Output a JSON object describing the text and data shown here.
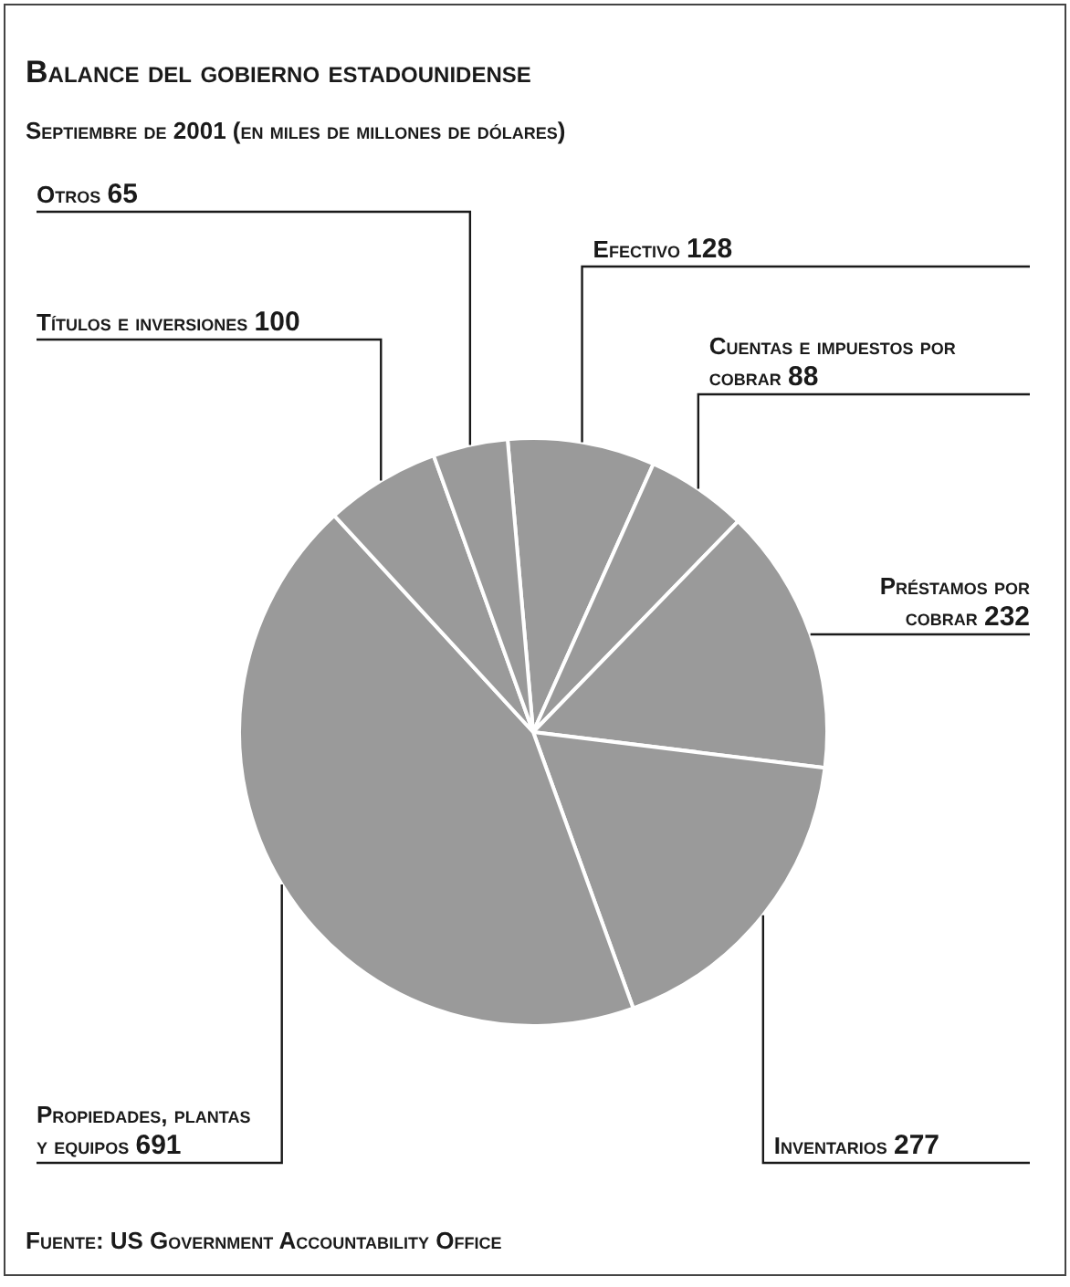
{
  "chart_data": {
    "type": "pie",
    "title": "Balance del gobierno estadounidense",
    "subtitle": "Septiembre de 2001 (en miles de millones de dólares)",
    "categories": [
      "Efectivo",
      "Cuentas e impuestos por cobrar",
      "Préstamos por cobrar",
      "Inventarios",
      "Propiedades, plantas y equipos",
      "Títulos e inversiones",
      "Otros"
    ],
    "values": [
      128,
      88,
      232,
      277,
      691,
      100,
      65
    ],
    "colors": [
      "#9a9a9a",
      "#9a9a9a",
      "#9a9a9a",
      "#9a9a9a",
      "#9a9a9a",
      "#9a9a9a",
      "#9a9a9a"
    ],
    "data_labels": true,
    "legend": false,
    "annotations": [
      "Fuente: US Government Accountability Office"
    ]
  }
}
